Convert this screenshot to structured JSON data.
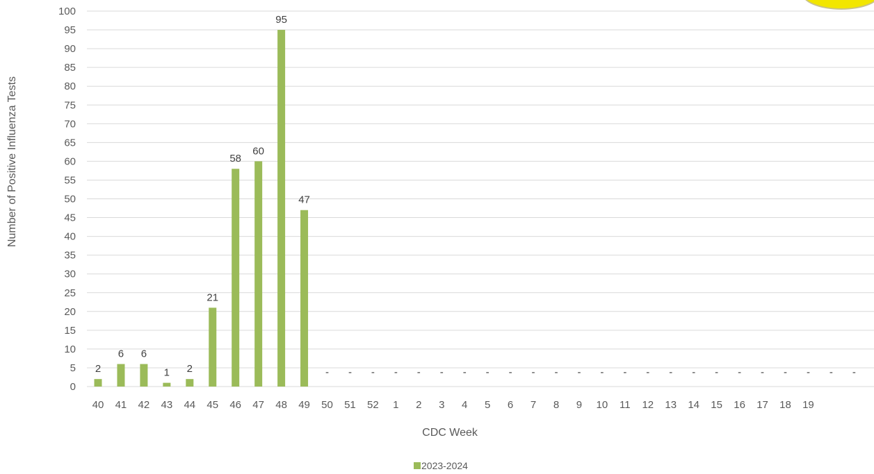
{
  "chart_data": {
    "type": "bar",
    "title": "",
    "xlabel": "CDC Week",
    "ylabel": "Number of Positive Influenza Tests",
    "ylim": [
      0,
      100
    ],
    "ytick_step": 5,
    "categories": [
      "40",
      "41",
      "42",
      "43",
      "44",
      "45",
      "46",
      "47",
      "48",
      "49",
      "50",
      "51",
      "52",
      "1",
      "2",
      "3",
      "4",
      "5",
      "6",
      "7",
      "8",
      "9",
      "10",
      "11",
      "12",
      "13",
      "14",
      "15",
      "16",
      "17",
      "18",
      "19",
      "",
      ""
    ],
    "series": [
      {
        "name": "2023-2024",
        "color": "#9bbb59",
        "values": [
          2,
          6,
          6,
          1,
          2,
          21,
          58,
          60,
          95,
          47,
          null,
          null,
          null,
          null,
          null,
          null,
          null,
          null,
          null,
          null,
          null,
          null,
          null,
          null,
          null,
          null,
          null,
          null,
          null,
          null,
          null,
          null,
          null,
          null
        ],
        "data_labels": [
          "2",
          "6",
          "6",
          "1",
          "2",
          "21",
          "58",
          "60",
          "95",
          "47",
          "-",
          "-",
          "-",
          "-",
          "-",
          "-",
          "-",
          "-",
          "-",
          "-",
          "-",
          "-",
          "-",
          "-",
          "-",
          "-",
          "-",
          "-",
          "-",
          "-",
          "-",
          "-",
          "-",
          "-"
        ]
      }
    ],
    "grid": true,
    "legend_position": "bottom"
  },
  "badge": {
    "color": "#f2e600",
    "icon": "logo-badge"
  }
}
